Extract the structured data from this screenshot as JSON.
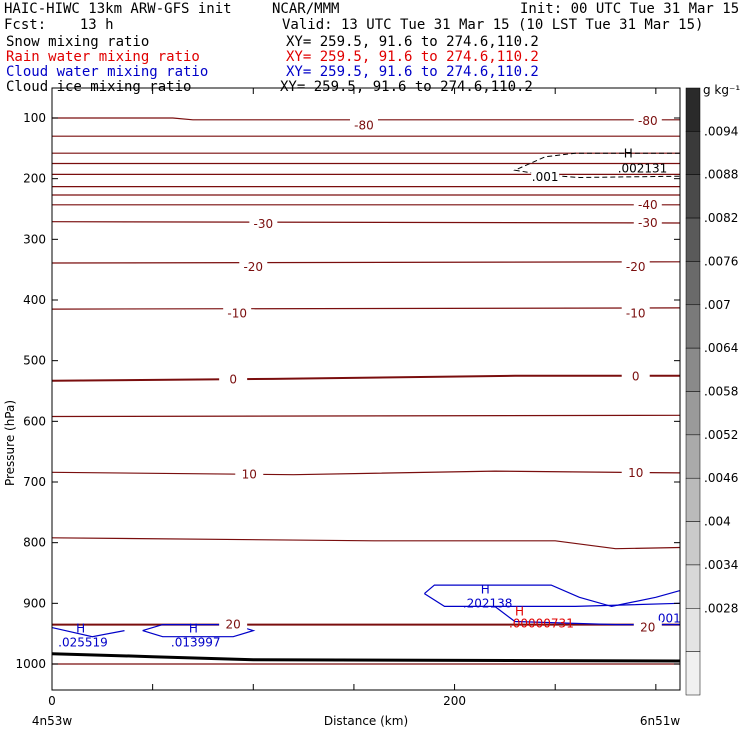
{
  "header": {
    "line1_left": "HAIC-HIWC 13km ARW-GFS init",
    "line1_mid": "NCAR/MMM",
    "line1_right": "Init: 00 UTC Tue 31 Mar 15",
    "line2_left": "Fcst:    13 h",
    "line2_right": "Valid: 13 UTC Tue 31 Mar 15 (10 LST Tue 31 Mar 15)"
  },
  "fields": [
    {
      "name": "Snow mixing ratio",
      "xy": "XY= 259.5, 91.6 to 274.6,110.2",
      "color": "#000000"
    },
    {
      "name": "Rain water mixing ratio",
      "xy": "XY= 259.5, 91.6 to 274.6,110.2",
      "color": "#e00000"
    },
    {
      "name": "Cloud water mixing ratio",
      "xy": "XY= 259.5, 91.6 to 274.6,110.2",
      "color": "#0000c8"
    },
    {
      "name": "Cloud ice mixing ratio",
      "xy": "XY= 259.5, 91.6 to 274.6,110.2",
      "color": "#000000"
    }
  ],
  "chart_data": {
    "type": "line",
    "xlabel": "Distance (km)",
    "ylabel": "Pressure (hPa)",
    "xlim": [
      0,
      312
    ],
    "ylim": [
      1000,
      50
    ],
    "x_ticks": [
      0,
      200
    ],
    "y_ticks": [
      100,
      200,
      300,
      400,
      500,
      600,
      700,
      800,
      900,
      1000
    ],
    "endpoint_left": "4n53w",
    "endpoint_right": "6n51w",
    "temperature_isotherms": [
      {
        "label": "-80",
        "points": [
          [
            0,
            100
          ],
          [
            60,
            100
          ],
          [
            70,
            103
          ],
          [
            312,
            103
          ]
        ]
      },
      {
        "label": "-80",
        "points": [
          [
            0,
            130
          ],
          [
            312,
            130
          ]
        ]
      },
      {
        "label": "",
        "points": [
          [
            0,
            158
          ],
          [
            312,
            158
          ]
        ]
      },
      {
        "label": "",
        "points": [
          [
            0,
            175
          ],
          [
            312,
            175
          ]
        ]
      },
      {
        "label": "",
        "points": [
          [
            0,
            193
          ],
          [
            312,
            193
          ]
        ]
      },
      {
        "label": "",
        "points": [
          [
            0,
            213
          ],
          [
            312,
            213
          ]
        ]
      },
      {
        "label": "",
        "points": [
          [
            0,
            227
          ],
          [
            312,
            227
          ]
        ]
      },
      {
        "label": "-40",
        "points": [
          [
            0,
            243
          ],
          [
            312,
            243
          ]
        ]
      },
      {
        "label": "-30",
        "points": [
          [
            0,
            271
          ],
          [
            312,
            273
          ]
        ]
      },
      {
        "label": "-20",
        "points": [
          [
            0,
            339
          ],
          [
            312,
            337
          ]
        ]
      },
      {
        "label": "-10",
        "points": [
          [
            0,
            415
          ],
          [
            312,
            413
          ]
        ]
      },
      {
        "label": "0",
        "points": [
          [
            0,
            533
          ],
          [
            110,
            530
          ],
          [
            230,
            525
          ],
          [
            312,
            525
          ]
        ]
      },
      {
        "label": "",
        "points": [
          [
            0,
            592
          ],
          [
            312,
            590
          ]
        ]
      },
      {
        "label": "10",
        "points": [
          [
            0,
            684
          ],
          [
            120,
            688
          ],
          [
            220,
            682
          ],
          [
            312,
            685
          ]
        ]
      },
      {
        "label": "",
        "points": [
          [
            0,
            792
          ],
          [
            160,
            797
          ],
          [
            250,
            797
          ],
          [
            280,
            810
          ],
          [
            312,
            808
          ]
        ]
      },
      {
        "label": "20",
        "points": [
          [
            0,
            935
          ],
          [
            312,
            935
          ]
        ]
      },
      {
        "label": "",
        "points": [
          [
            0,
            1000
          ],
          [
            312,
            1000
          ]
        ]
      }
    ],
    "isotherm_labels": [
      {
        "text": "-80",
        "x": 155,
        "y": 112
      },
      {
        "text": "-80",
        "x": 296,
        "y": 105
      },
      {
        "text": "-40",
        "x": 296,
        "y": 243
      },
      {
        "text": "-30",
        "x": 105,
        "y": 275
      },
      {
        "text": "-30",
        "x": 296,
        "y": 273
      },
      {
        "text": "-20",
        "x": 100,
        "y": 346
      },
      {
        "text": "-20",
        "x": 290,
        "y": 346
      },
      {
        "text": "-10",
        "x": 92,
        "y": 422
      },
      {
        "text": "-10",
        "x": 290,
        "y": 422
      },
      {
        "text": "0",
        "x": 90,
        "y": 531
      },
      {
        "text": "0",
        "x": 290,
        "y": 526
      },
      {
        "text": "10",
        "x": 98,
        "y": 688
      },
      {
        "text": "10",
        "x": 290,
        "y": 685
      },
      {
        "text": "20",
        "x": 90,
        "y": 935
      },
      {
        "text": "20",
        "x": 296,
        "y": 940
      }
    ],
    "cloud_ice_contour": {
      "label": ".001",
      "points": [
        [
          312,
          158
        ],
        [
          260,
          158
        ],
        [
          245,
          164
        ],
        [
          230,
          186
        ],
        [
          245,
          194
        ],
        [
          262,
          198
        ],
        [
          312,
          196
        ]
      ],
      "label_pos": [
        245,
        197
      ],
      "max": {
        "text": "H",
        "value": ".002131",
        "x": 288,
        "y": 172
      }
    },
    "cloud_water_contours": [
      {
        "label": "",
        "points": [
          [
            185,
            884
          ],
          [
            190,
            870
          ],
          [
            248,
            870
          ],
          [
            262,
            890
          ],
          [
            278,
            905
          ],
          [
            300,
            890
          ],
          [
            312,
            879
          ]
        ]
      },
      {
        "label": "",
        "points": [
          [
            185,
            884
          ],
          [
            195,
            905
          ],
          [
            260,
            905
          ],
          [
            312,
            900
          ]
        ]
      },
      {
        "label": ".001",
        "points": [
          [
            220,
            905
          ],
          [
            230,
            930
          ],
          [
            280,
            935
          ],
          [
            312,
            935
          ]
        ]
      },
      {
        "label": "",
        "points": [
          [
            0,
            940
          ],
          [
            20,
            955
          ],
          [
            36,
            945
          ]
        ]
      },
      {
        "label": "",
        "points": [
          [
            45,
            945
          ],
          [
            55,
            955
          ],
          [
            90,
            955
          ],
          [
            100,
            945
          ],
          [
            90,
            935
          ],
          [
            55,
            935
          ],
          [
            45,
            945
          ]
        ]
      }
    ],
    "cloud_water_maxima": [
      {
        "text": "H",
        "value": ".202138",
        "x": 215,
        "y": 890
      },
      {
        "text": "H",
        "value": ".025519",
        "x": 14,
        "y": 955
      },
      {
        "text": "H",
        "value": ".013997",
        "x": 70,
        "y": 955
      }
    ],
    "rain_maxima": [
      {
        "text": "H",
        "value": ".00000731",
        "x": 230,
        "y": 930
      }
    ],
    "terrain_points": [
      [
        0,
        983
      ],
      [
        50,
        988
      ],
      [
        100,
        993
      ],
      [
        312,
        995
      ]
    ],
    "colorbar": {
      "unit": "g kg⁻¹",
      "ticks": [
        ".0094",
        ".0088",
        ".0082",
        ".0076",
        ".007",
        ".0064",
        ".0058",
        ".0052",
        ".0046",
        ".004",
        ".0034",
        ".0028"
      ],
      "colors": [
        "#2a2a2a",
        "#3a3a3a",
        "#4a4a4a",
        "#5a5a5a",
        "#6a6a6a",
        "#7a7a7a",
        "#8a8a8a",
        "#9a9a9a",
        "#aaaaaa",
        "#bababa",
        "#cacaca",
        "#d8d8d8",
        "#e4e4e4",
        "#f0f0f0"
      ]
    },
    "colors": {
      "isotherm": "#7a0e0e",
      "cloud_water": "#0000c8",
      "rain": "#e00000",
      "ice": "#000000"
    }
  }
}
